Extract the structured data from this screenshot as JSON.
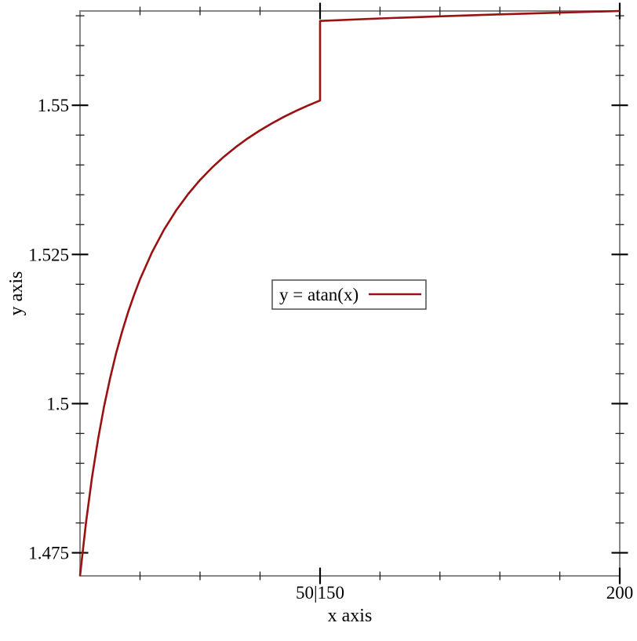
{
  "page": {
    "background": "#ffffff"
  },
  "chart_data": {
    "type": "line",
    "title": "",
    "xlabel": "x axis",
    "ylabel": "y axis",
    "grid": false,
    "x_axis": {
      "collapsed_region": [
        50,
        150
      ],
      "collapse_label": "50|150",
      "segments": [
        [
          10,
          50
        ],
        [
          150,
          200
        ]
      ],
      "major_ticks": [
        {
          "value": 50,
          "label": "50|150"
        },
        {
          "value": 200,
          "label": "200"
        }
      ],
      "minor_ticks": [
        20,
        30,
        40,
        160,
        170,
        180,
        190
      ]
    },
    "y_axis": {
      "range": [
        1.47113,
        1.5658
      ],
      "major_ticks": [
        {
          "value": 1.475,
          "label": "1.475"
        },
        {
          "value": 1.5,
          "label": "1.5"
        },
        {
          "value": 1.525,
          "label": "1.525"
        },
        {
          "value": 1.55,
          "label": "1.55"
        }
      ],
      "minor_ticks": [
        1.48,
        1.485,
        1.49,
        1.495,
        1.505,
        1.51,
        1.515,
        1.52,
        1.53,
        1.535,
        1.54,
        1.545,
        1.555,
        1.56,
        1.565
      ]
    },
    "series": [
      {
        "name": "y = atan(x)",
        "color": "#991111",
        "points": [
          [
            10,
            1.47113
          ],
          [
            11,
            1.48014
          ],
          [
            12,
            1.48766
          ],
          [
            13,
            1.49402
          ],
          [
            14,
            1.49949
          ],
          [
            15,
            1.50423
          ],
          [
            16,
            1.50838
          ],
          [
            17,
            1.51204
          ],
          [
            18,
            1.5153
          ],
          [
            19,
            1.51821
          ],
          [
            20,
            1.52084
          ],
          [
            22,
            1.52537
          ],
          [
            24,
            1.52916
          ],
          [
            26,
            1.53235
          ],
          [
            28,
            1.5351
          ],
          [
            30,
            1.53748
          ],
          [
            32,
            1.53956
          ],
          [
            34,
            1.54139
          ],
          [
            36,
            1.54303
          ],
          [
            38,
            1.54449
          ],
          [
            40,
            1.5458
          ],
          [
            42,
            1.54699
          ],
          [
            44,
            1.54807
          ],
          [
            46,
            1.54906
          ],
          [
            48,
            1.54997
          ],
          [
            50,
            1.5508
          ],
          [
            150,
            1.56413
          ],
          [
            160,
            1.56455
          ],
          [
            170,
            1.56491
          ],
          [
            180,
            1.56524
          ],
          [
            190,
            1.56553
          ],
          [
            200,
            1.5658
          ]
        ]
      }
    ],
    "legend": {
      "position": "center",
      "entries": [
        {
          "label": "y = atan(x)",
          "color": "#991111"
        }
      ]
    }
  },
  "style": {
    "background": "#ffffff",
    "frame_color": "#878787",
    "major_tick_color": "#000000",
    "minor_tick_color": "#1d1d1d",
    "curve_color": "#991111",
    "legend_border_color": "#4d4d4d",
    "text_color": "#000000"
  }
}
